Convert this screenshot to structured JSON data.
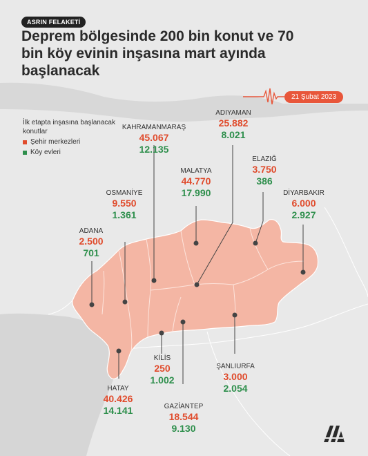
{
  "header": {
    "tag": "ASRIN FELAKETİ",
    "title": "Deprem bölgesinde 200 bin konut ve 70 bin köy evinin inşasına mart ayında başlanacak",
    "date": "21 Şubat 2023"
  },
  "legend": {
    "intro": "İlk etapta inşasına başlanacak konutlar",
    "city_label": "Şehir merkezleri",
    "village_label": "Köy evleri",
    "city_color": "#e04b2c",
    "village_color": "#2e8f4c"
  },
  "cities": [
    {
      "name": "ADIYAMAN",
      "city_homes": "25.882",
      "village_homes": "8.021"
    },
    {
      "name": "KAHRAMANMARAŞ",
      "city_homes": "45.067",
      "village_homes": "12.135"
    },
    {
      "name": "ELAZIĞ",
      "city_homes": "3.750",
      "village_homes": "386"
    },
    {
      "name": "MALATYA",
      "city_homes": "44.770",
      "village_homes": "17.990"
    },
    {
      "name": "OSMANİYE",
      "city_homes": "9.550",
      "village_homes": "1.361"
    },
    {
      "name": "DİYARBAKIR",
      "city_homes": "6.000",
      "village_homes": "2.927"
    },
    {
      "name": "ADANA",
      "city_homes": "2.500",
      "village_homes": "701"
    },
    {
      "name": "KİLİS",
      "city_homes": "250",
      "village_homes": "1.002"
    },
    {
      "name": "ŞANLIURFA",
      "city_homes": "3.000",
      "village_homes": "2.054"
    },
    {
      "name": "HATAY",
      "city_homes": "40.426",
      "village_homes": "14.141"
    },
    {
      "name": "GAZİANTEP",
      "city_homes": "18.544",
      "village_homes": "9.130"
    }
  ],
  "colors": {
    "region_fill": "#f4b6a4",
    "marker": "#444444",
    "accent": "#e8563a"
  },
  "logo": "AA"
}
